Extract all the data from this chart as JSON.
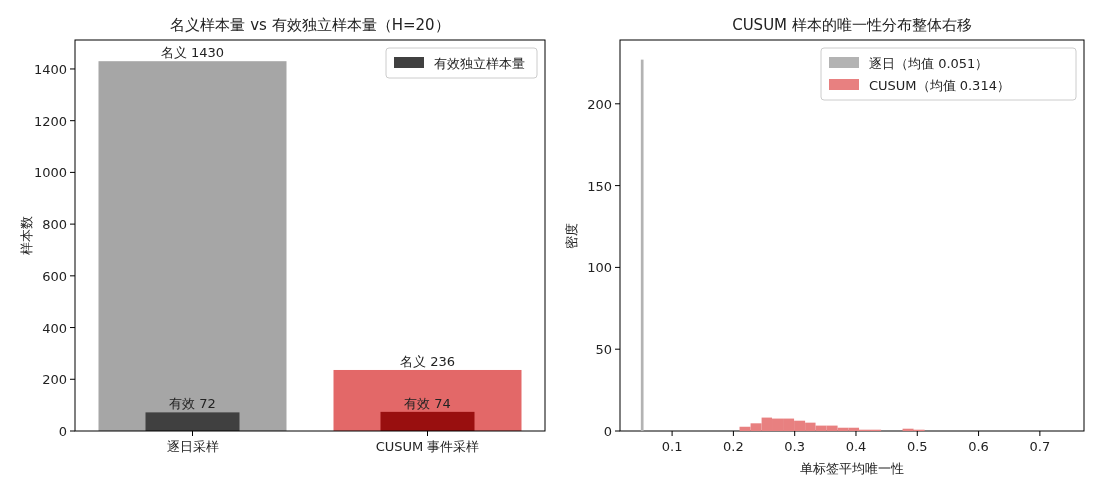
{
  "chart_data": [
    {
      "type": "bar",
      "title": "名义样本量 vs 有效独立样本量（H=20）",
      "ylabel": "样本数",
      "categories": [
        "逐日采样",
        "CUSUM 事件采样"
      ],
      "series": [
        {
          "colors": [
            "#a6a6a6",
            "#e36868"
          ],
          "values": [
            1430,
            236
          ],
          "value_labels": [
            "名义 1430",
            "名义 236"
          ]
        },
        {
          "name": "有效独立样本量",
          "colors": [
            "#404040",
            "#990f0f"
          ],
          "values": [
            72,
            74
          ],
          "value_labels": [
            "有效 72",
            "有效 74"
          ]
        }
      ],
      "ylim": [
        0,
        1512
      ],
      "yticks": [
        0,
        200,
        400,
        600,
        800,
        1000,
        1200,
        1400
      ],
      "legend": "top right",
      "grid": false
    },
    {
      "type": "histogram",
      "title": "CUSUM 样本的唯一性分布整体右移",
      "xlabel": "单标签平均唯一性",
      "ylabel": "密度",
      "series": [
        {
          "name": "逐日（均值 0.051）",
          "color": "#b3b3b3",
          "values": [
            227,
            null,
            null,
            null,
            null,
            null,
            null,
            null,
            null,
            null,
            null,
            null,
            null,
            null,
            null,
            null,
            null,
            null
          ]
        },
        {
          "name": "CUSUM（均值 0.314）",
          "color": "#e88080",
          "values": [
            null,
            null,
            2.6,
            4.7,
            8.2,
            7.6,
            7.6,
            6.3,
            5.1,
            3.3,
            3.3,
            2.0,
            2.0,
            0.8,
            0.8,
            0,
            1.4,
            0.8
          ]
        }
      ],
      "bins": [
        0.049,
        0.0534,
        0.21,
        0.228,
        0.246,
        0.263,
        0.281,
        0.299,
        0.317,
        0.334,
        0.352,
        0.37,
        0.388,
        0.405,
        0.423,
        0.441,
        0.476,
        0.494,
        0.512
      ],
      "xlim": [
        0.015,
        0.772
      ],
      "xticks": [
        0.1,
        0.2,
        0.3,
        0.4,
        0.5,
        0.6,
        0.7
      ],
      "ylim": [
        0,
        239
      ],
      "yticks": [
        0,
        50,
        100,
        150,
        200
      ],
      "legend": "top right",
      "grid": false
    }
  ]
}
